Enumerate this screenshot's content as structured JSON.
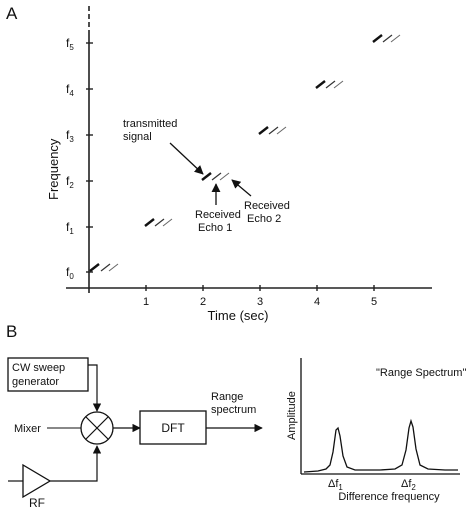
{
  "panel_a": {
    "label": "A",
    "y_axis_label": "Frequency",
    "x_axis_label": "Time (sec)",
    "y_ticks": [
      {
        "base": "f",
        "sub": "0"
      },
      {
        "base": "f",
        "sub": "1"
      },
      {
        "base": "f",
        "sub": "2"
      },
      {
        "base": "f",
        "sub": "3"
      },
      {
        "base": "f",
        "sub": "4"
      },
      {
        "base": "f",
        "sub": "5"
      }
    ],
    "x_ticks": [
      "1",
      "2",
      "3",
      "4",
      "5"
    ],
    "annotations": {
      "transmitted": [
        "transmitted",
        "signal"
      ],
      "echo1": [
        "Received",
        "Echo 1"
      ],
      "echo2": [
        "Received",
        "Echo 2"
      ]
    }
  },
  "panel_b": {
    "label": "B",
    "blocks": {
      "cw_sweep": [
        "CW sweep",
        "generator"
      ],
      "mixer": "Mixer",
      "dft": "DFT",
      "range_spectrum_output": [
        "Range",
        "spectrum"
      ],
      "rf": "RF"
    },
    "spectrum_plot": {
      "title": "\"Range Spectrum\"",
      "y_label": "Amplitude",
      "x_label": "Difference frequency",
      "peak_labels": [
        {
          "base": "Δf",
          "sub": "1"
        },
        {
          "base": "Δf",
          "sub": "2"
        }
      ]
    }
  }
}
